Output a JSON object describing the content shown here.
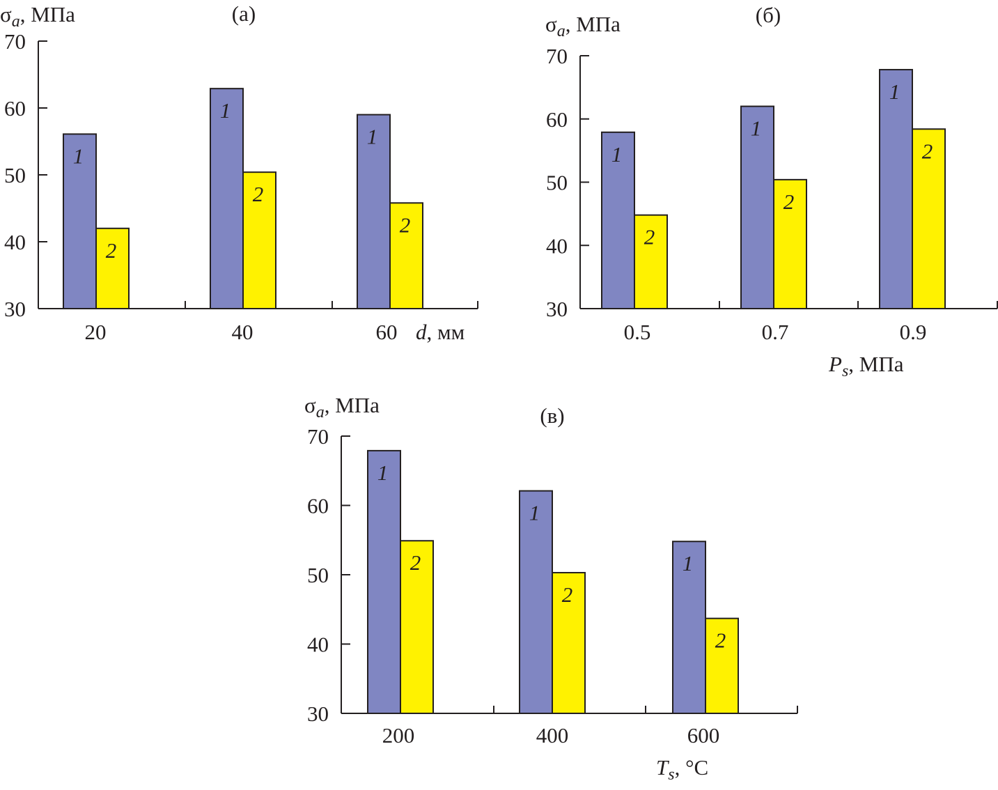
{
  "colors": {
    "series1": "#8086c2",
    "series2": "#fff200",
    "axis": "#231f20"
  },
  "chart_data": [
    {
      "type": "bar",
      "panel": "(а)",
      "ylabel": {
        "main": "σ",
        "sub": "a",
        "rest": ", МПа"
      },
      "xlabel": {
        "main": "d",
        "sub": "",
        "rest": ", мм"
      },
      "ylim": [
        30,
        70
      ],
      "yticks": [
        30,
        40,
        50,
        60,
        70
      ],
      "categories": [
        "20",
        "40",
        "60"
      ],
      "series": [
        {
          "name": "1",
          "values": [
            56.1,
            62.9,
            59.0
          ]
        },
        {
          "name": "2",
          "values": [
            42.0,
            50.4,
            45.8
          ]
        }
      ]
    },
    {
      "type": "bar",
      "panel": "(б)",
      "ylabel": {
        "main": "σ",
        "sub": "a",
        "rest": ", МПа"
      },
      "xlabel": {
        "main": "P",
        "sub": "s",
        "rest": ", МПа"
      },
      "ylim": [
        30,
        70
      ],
      "yticks": [
        30,
        40,
        50,
        60,
        70
      ],
      "categories": [
        "0.5",
        "0.7",
        "0.9"
      ],
      "series": [
        {
          "name": "1",
          "values": [
            57.9,
            62.0,
            67.8
          ]
        },
        {
          "name": "2",
          "values": [
            44.8,
            50.4,
            58.4
          ]
        }
      ]
    },
    {
      "type": "bar",
      "panel": "(в)",
      "ylabel": {
        "main": "σ",
        "sub": "a",
        "rest": ", МПа"
      },
      "xlabel": {
        "main": "T",
        "sub": "s",
        "rest": ", °C"
      },
      "ylim": [
        30,
        70
      ],
      "yticks": [
        30,
        40,
        50,
        60,
        70
      ],
      "categories": [
        "200",
        "400",
        "600"
      ],
      "series": [
        {
          "name": "1",
          "values": [
            67.9,
            62.1,
            54.8
          ]
        },
        {
          "name": "2",
          "values": [
            54.9,
            50.3,
            43.7
          ]
        }
      ]
    }
  ]
}
